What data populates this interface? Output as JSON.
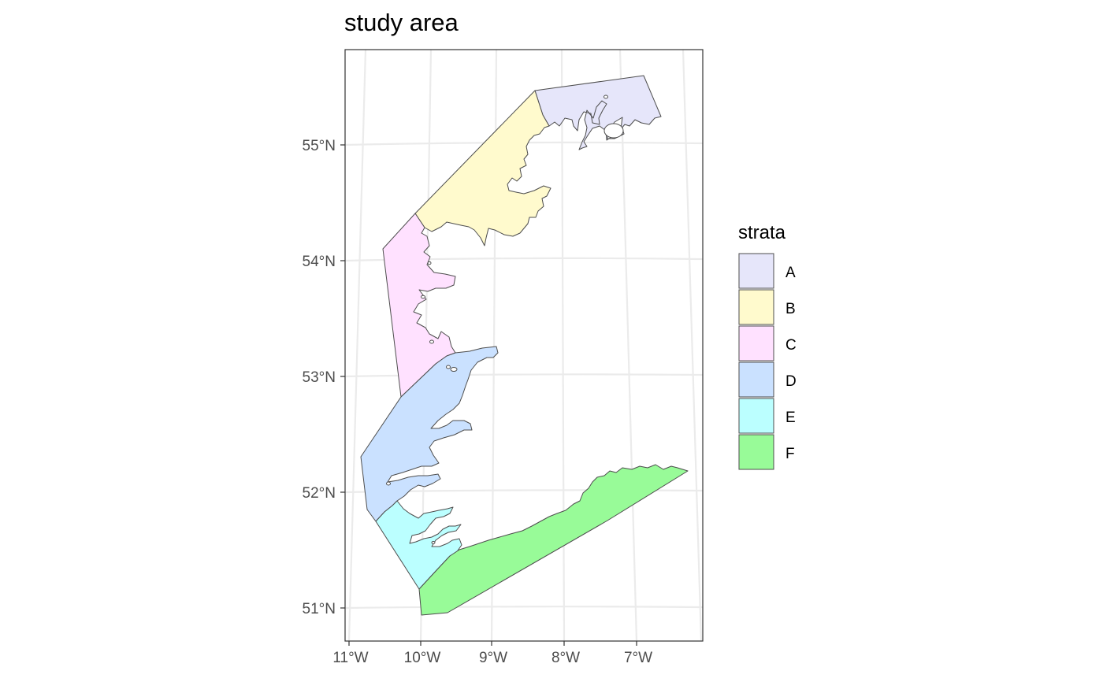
{
  "title": "study area",
  "legend": {
    "title": "strata",
    "items": [
      {
        "label": "A",
        "color": "#E6E6FA"
      },
      {
        "label": "B",
        "color": "#FFFACD"
      },
      {
        "label": "C",
        "color": "#FFE1FF"
      },
      {
        "label": "D",
        "color": "#CAE1FF"
      },
      {
        "label": "E",
        "color": "#BBFFFF"
      },
      {
        "label": "F",
        "color": "#98FB98"
      }
    ]
  },
  "axes": {
    "x_ticks": [
      "11°W",
      "10°W",
      "9°W",
      "8°W",
      "7°W"
    ],
    "y_ticks": [
      "55°N",
      "54°N",
      "53°N",
      "52°N",
      "51°N"
    ]
  },
  "colors": {
    "outline": "#4d4d4d",
    "grid": "#ebebeb",
    "panel_border": "#333333"
  }
}
